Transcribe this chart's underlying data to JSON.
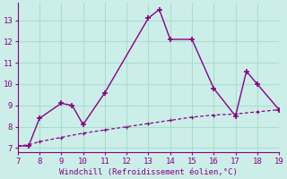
{
  "line1_x": [
    7,
    7.5,
    8,
    9,
    9.5,
    10,
    11,
    13,
    13.5,
    14,
    15,
    16,
    17,
    17.5,
    18,
    19
  ],
  "line1_y": [
    7.1,
    7.1,
    8.4,
    9.1,
    9.0,
    8.1,
    9.6,
    13.1,
    13.5,
    12.1,
    12.1,
    9.8,
    8.5,
    10.6,
    10.0,
    8.8
  ],
  "line2_x": [
    7,
    7.5,
    8,
    9,
    10,
    11,
    12,
    13,
    14,
    15,
    16,
    17,
    18,
    19
  ],
  "line2_y": [
    7.1,
    7.15,
    7.3,
    7.5,
    7.7,
    7.85,
    8.0,
    8.15,
    8.3,
    8.45,
    8.55,
    8.6,
    8.7,
    8.8
  ],
  "line_color": "#880088",
  "bg_color": "#cceee8",
  "grid_color": "#aaddcc",
  "xlabel": "Windchill (Refroidissement éolien,°C)",
  "xlabel_color": "#880088",
  "tick_color": "#880088",
  "xlim": [
    7,
    19
  ],
  "ylim": [
    6.8,
    13.8
  ],
  "xticks": [
    7,
    8,
    9,
    10,
    11,
    12,
    13,
    14,
    15,
    16,
    17,
    18,
    19
  ],
  "yticks": [
    7,
    8,
    9,
    10,
    11,
    12,
    13
  ]
}
